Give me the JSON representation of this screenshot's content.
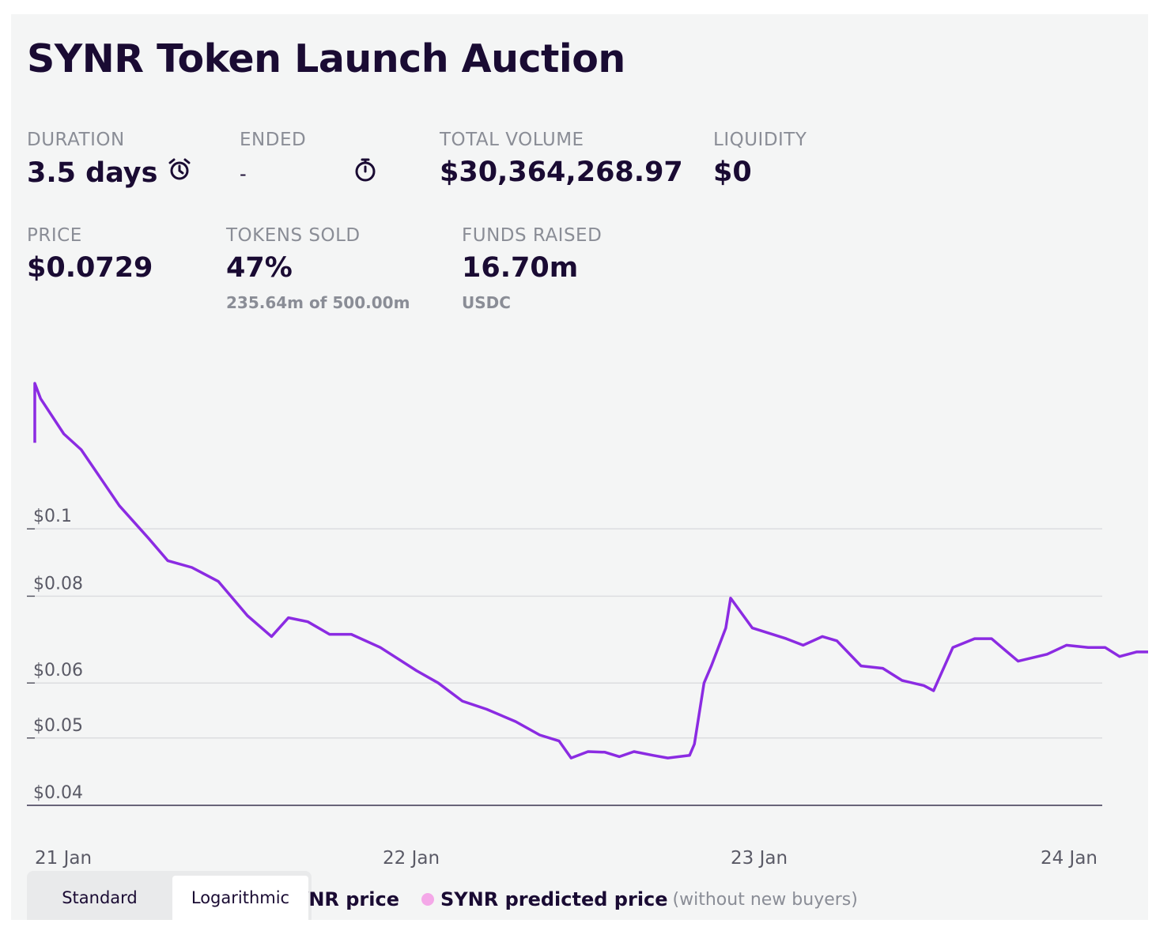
{
  "title": "SYNR Token Launch Auction",
  "stats": {
    "duration": {
      "label": "DURATION",
      "value": "3.5 days",
      "icon": "alarm-clock-icon"
    },
    "ended": {
      "label": "ENDED",
      "value": "-",
      "icon": "stopwatch-icon"
    },
    "total_volume": {
      "label": "TOTAL VOLUME",
      "value": "$30,364,268.97"
    },
    "liquidity": {
      "label": "LIQUIDITY",
      "value": "$0"
    },
    "price": {
      "label": "PRICE",
      "value": "$0.0729"
    },
    "tokens_sold": {
      "label": "TOKENS SOLD",
      "value": "47%",
      "sub": "235.64m of 500.00m"
    },
    "funds_raised": {
      "label": "FUNDS RAISED",
      "value": "16.70m",
      "sub": "USDC"
    }
  },
  "scale_toggle": {
    "standard": "Standard",
    "logarithmic": "Logarithmic",
    "selected": "Logarithmic"
  },
  "legend": {
    "series_1": "SYNR price",
    "series_2": "SYNR predicted price",
    "series_2_note": "(without new buyers)",
    "series_1_color": "#8b2be2",
    "series_2_color": "#f4a8e8"
  },
  "chart_data": {
    "type": "line",
    "y_scale": "log",
    "ylim": [
      0.04,
      0.165
    ],
    "y_ticks": [
      {
        "value": 0.1,
        "label": "$0.1"
      },
      {
        "value": 0.08,
        "label": "$0.08"
      },
      {
        "value": 0.06,
        "label": "$0.06"
      },
      {
        "value": 0.05,
        "label": "$0.05"
      },
      {
        "value": 0.04,
        "label": "$0.04"
      }
    ],
    "xlim": [
      "2022-01-21",
      "2022-01-24"
    ],
    "x_ticks": [
      {
        "value": "2022-01-21",
        "label": "21 Jan"
      },
      {
        "value": "2022-01-22",
        "label": "22 Jan"
      },
      {
        "value": "2022-01-23",
        "label": "23 Jan"
      },
      {
        "value": "2022-01-24",
        "label": "24 Jan"
      }
    ],
    "grid": true,
    "series": [
      {
        "name": "SYNR price",
        "color": "#8b2be2",
        "points": [
          [
            "2022-01-21 00:00",
            0.133
          ],
          [
            "2022-01-21 00:00",
            0.162
          ],
          [
            "2022-01-21 00:24",
            0.154
          ],
          [
            "2022-01-21 02:00",
            0.137
          ],
          [
            "2022-01-21 03:12",
            0.13
          ],
          [
            "2022-01-21 05:50",
            0.108
          ],
          [
            "2022-01-21 07:50",
            0.097
          ],
          [
            "2022-01-21 09:10",
            0.09
          ],
          [
            "2022-01-21 10:50",
            0.088
          ],
          [
            "2022-01-21 12:40",
            0.084
          ],
          [
            "2022-01-21 14:40",
            0.075
          ],
          [
            "2022-01-21 16:20",
            0.07
          ],
          [
            "2022-01-21 17:30",
            0.0745
          ],
          [
            "2022-01-21 18:50",
            0.0735
          ],
          [
            "2022-01-21 20:20",
            0.0705
          ],
          [
            "2022-01-21 21:50",
            0.0705
          ],
          [
            "2022-01-21 23:50",
            0.0675
          ],
          [
            "2022-01-22 02:20",
            0.0625
          ],
          [
            "2022-01-22 03:50",
            0.06
          ],
          [
            "2022-01-22 05:30",
            0.0565
          ],
          [
            "2022-01-22 07:10",
            0.055
          ],
          [
            "2022-01-22 09:10",
            0.0528
          ],
          [
            "2022-01-22 10:50",
            0.0505
          ],
          [
            "2022-01-22 12:10",
            0.0495
          ],
          [
            "2022-01-22 13:00",
            0.0468
          ],
          [
            "2022-01-22 14:10",
            0.0478
          ],
          [
            "2022-01-22 15:20",
            0.0477
          ],
          [
            "2022-01-22 16:20",
            0.047
          ],
          [
            "2022-01-22 17:20",
            0.0478
          ],
          [
            "2022-01-22 18:40",
            0.0472
          ],
          [
            "2022-01-22 19:40",
            0.0468
          ],
          [
            "2022-01-22 21:10",
            0.0472
          ],
          [
            "2022-01-22 21:30",
            0.049
          ],
          [
            "2022-01-22 22:10",
            0.06
          ],
          [
            "2022-01-22 22:40",
            0.0635
          ],
          [
            "2022-01-22 23:40",
            0.072
          ],
          [
            "2022-01-23 00:00",
            0.0795
          ],
          [
            "2022-01-23 01:30",
            0.072
          ],
          [
            "2022-01-23 03:50",
            0.0695
          ],
          [
            "2022-01-23 05:00",
            0.068
          ],
          [
            "2022-01-23 06:20",
            0.07
          ],
          [
            "2022-01-23 07:20",
            0.069
          ],
          [
            "2022-01-23 09:00",
            0.0635
          ],
          [
            "2022-01-23 10:30",
            0.063
          ],
          [
            "2022-01-23 11:50",
            0.0605
          ],
          [
            "2022-01-23 13:20",
            0.0595
          ],
          [
            "2022-01-23 14:00",
            0.0585
          ],
          [
            "2022-01-23 15:20",
            0.0675
          ],
          [
            "2022-01-23 16:50",
            0.0695
          ],
          [
            "2022-01-23 18:00",
            0.0695
          ],
          [
            "2022-01-23 19:50",
            0.0645
          ],
          [
            "2022-01-23 21:50",
            0.066
          ],
          [
            "2022-01-23 23:10",
            0.068
          ],
          [
            "2022-01-24 00:40",
            0.0675
          ],
          [
            "2022-01-24 01:50",
            0.0675
          ],
          [
            "2022-01-24 02:50",
            0.0655
          ],
          [
            "2022-01-24 04:00",
            0.0665
          ],
          [
            "2022-01-24 05:10",
            0.0665
          ],
          [
            "2022-01-24 06:40",
            0.0628
          ],
          [
            "2022-01-24 07:50",
            0.0625
          ],
          [
            "2022-01-24 08:50",
            0.0595
          ],
          [
            "2022-01-24 09:50",
            0.059
          ],
          [
            "2022-01-24 11:20",
            0.061
          ],
          [
            "2022-01-24 12:50",
            0.062
          ],
          [
            "2022-01-24 14:00",
            0.0635
          ],
          [
            "2022-01-24 15:00",
            0.0738
          ],
          [
            "2022-01-24 15:50",
            0.0765
          ],
          [
            "2022-01-24 17:20",
            0.0705
          ],
          [
            "2022-01-24 18:20",
            0.0722
          ],
          [
            "2022-01-24 19:20",
            0.0712
          ],
          [
            "2022-01-24 20:50",
            0.0715
          ],
          [
            "2022-01-24 20:50",
            0.0695
          ]
        ]
      }
    ]
  }
}
